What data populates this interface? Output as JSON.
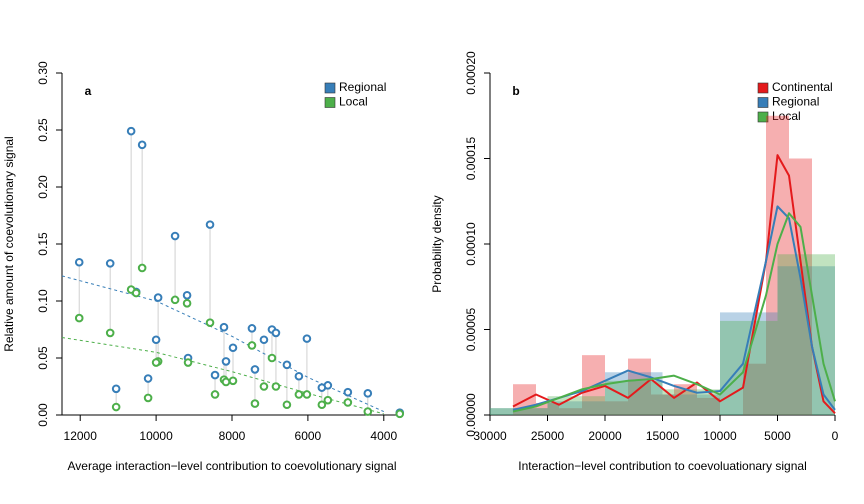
{
  "chart_data": [
    {
      "type": "scatter",
      "panel": "a",
      "xlabel": "Average interaction−level contribution to coevolutionary signal",
      "ylabel": "Relative amount of coevolutionary signal",
      "xlim": [
        12480,
        3520
      ],
      "ylim": [
        0,
        0.3
      ],
      "xticks": [
        12000,
        10000,
        8000,
        6000,
        4000
      ],
      "yticks": [
        {
          "value": 0,
          "label": "0.00"
        },
        0.05,
        {
          "value": 0.1,
          "label": "0.10"
        },
        0.15,
        {
          "value": 0.2,
          "label": "0.20"
        },
        0.25,
        {
          "value": 0.3,
          "label": "0.30"
        }
      ],
      "connect_pairs": true,
      "legend": "top-right",
      "x": [
        10658,
        10368,
        12026,
        11210,
        9500,
        8579,
        9947,
        10526,
        9184,
        7474,
        8211,
        6947,
        6026,
        11053,
        10211,
        10000,
        7974,
        7158,
        6553,
        6237,
        5474,
        4947,
        4421,
        9158,
        8447,
        7395,
        6842,
        5632,
        8158,
        3579
      ],
      "series": [
        {
          "name": "Regional",
          "color": "#377eb8",
          "values": [
            0.249,
            0.237,
            0.134,
            0.133,
            0.157,
            0.167,
            0.103,
            0.108,
            0.105,
            0.076,
            0.077,
            0.075,
            0.067,
            0.023,
            0.032,
            0.066,
            0.059,
            0.066,
            0.044,
            0.034,
            0.026,
            0.02,
            0.019,
            0.05,
            0.035,
            0.04,
            0.072,
            0.024,
            0.047,
            0.002
          ]
        },
        {
          "name": "Local",
          "color": "#4daf4a",
          "values": [
            0.11,
            0.129,
            0.085,
            0.072,
            0.101,
            0.081,
            0.047,
            0.107,
            0.098,
            0.061,
            0.031,
            0.05,
            0.018,
            0.007,
            0.015,
            0.046,
            0.03,
            0.025,
            0.009,
            0.018,
            0.013,
            0.011,
            0.003,
            0.046,
            0.018,
            0.01,
            0.025,
            0.009,
            0.029,
            0.001
          ]
        }
      ],
      "fits": [
        {
          "color": "#377eb8",
          "x": [
            12480,
            10000,
            8000,
            6000,
            4000
          ],
          "values": [
            0.122,
            0.1,
            0.069,
            0.033,
            0.003
          ]
        },
        {
          "color": "#4daf4a",
          "x": [
            12480,
            10000,
            8000,
            6000,
            4000
          ],
          "values": [
            0.068,
            0.055,
            0.038,
            0.019,
            0.001
          ]
        }
      ]
    },
    {
      "type": "histogram",
      "panel": "b",
      "xlabel": "Interaction−level contribution to coevoluationary signal",
      "ylabel": "Probability density",
      "xlim": [
        30000,
        0
      ],
      "ylim": [
        0,
        0.0002
      ],
      "xticks": [
        30000,
        25000,
        20000,
        15000,
        10000,
        5000,
        0
      ],
      "yticks": [
        {
          "value": 0,
          "label": "0.00000"
        },
        {
          "value": 5e-05,
          "label": "0.00005"
        },
        {
          "value": 0.0001,
          "label": "0.00010"
        },
        {
          "value": 0.00015,
          "label": "0.00015"
        },
        {
          "value": 0.0002,
          "label": "0.00020"
        }
      ],
      "legend": "top-right",
      "series": [
        {
          "name": "Continental",
          "color": "#e41a1c",
          "bins": [
            28000,
            26000,
            24000,
            22000,
            20000,
            18000,
            16000,
            14000,
            12000,
            10000,
            8000,
            6000,
            4000,
            2000
          ],
          "values": [
            1.8e-05,
            7e-06,
            4e-06,
            3.5e-05,
            8e-06,
            3.3e-05,
            1.2e-05,
            1.8e-05,
            1e-05,
            0,
            3e-05,
            0.000175,
            0.00015
          ],
          "density_x": [
            28000,
            26000,
            24000,
            22000,
            20000,
            18000,
            16000,
            14000,
            12000,
            10000,
            8000,
            6000,
            5000,
            4000,
            3000,
            2000,
            1000,
            0
          ],
          "density": [
            5e-06,
            1.2e-05,
            6e-06,
            1.3e-05,
            1.7e-05,
            1e-05,
            2.1e-05,
            1e-05,
            1.9e-05,
            8e-06,
            1.6e-05,
            9e-05,
            0.000152,
            0.00014,
            9e-05,
            4e-05,
            8e-06,
            1e-06
          ]
        },
        {
          "name": "Regional",
          "color": "#377eb8",
          "bins": [
            30000,
            25000,
            20000,
            15000,
            10000,
            5000,
            0
          ],
          "values": [
            4e-06,
            8e-06,
            2.5e-05,
            1.2e-05,
            6e-05,
            8.7e-05
          ],
          "density_x": [
            28000,
            26000,
            24000,
            22000,
            20000,
            18000,
            16000,
            14000,
            12000,
            10000,
            8000,
            6000,
            5000,
            4000,
            3000,
            2000,
            1000,
            0
          ],
          "density": [
            3e-06,
            6e-06,
            1e-05,
            1.4e-05,
            2e-05,
            2.6e-05,
            2.2e-05,
            1.7e-05,
            1.3e-05,
            1.4e-05,
            3e-05,
            9e-05,
            0.000122,
            0.000115,
            8e-05,
            4e-05,
            1.2e-05,
            3e-06
          ]
        },
        {
          "name": "Local",
          "color": "#4daf4a",
          "bins": [
            30000,
            25000,
            20000,
            15000,
            10000,
            5000,
            0
          ],
          "values": [
            4e-06,
            1.1e-05,
            2e-05,
            1.5e-05,
            5.5e-05,
            9.4e-05
          ],
          "density_x": [
            28000,
            26000,
            24000,
            22000,
            20000,
            18000,
            16000,
            14000,
            12000,
            10000,
            8000,
            6000,
            5000,
            4000,
            3000,
            2000,
            1000,
            0
          ],
          "density": [
            2e-06,
            5e-06,
            1e-05,
            1.5e-05,
            1.8e-05,
            2e-05,
            2.1e-05,
            2.3e-05,
            1.8e-05,
            1.2e-05,
            2.5e-05,
            7e-05,
            0.0001,
            0.000118,
            0.00011,
            7e-05,
            3e-05,
            8e-06
          ]
        }
      ]
    }
  ]
}
